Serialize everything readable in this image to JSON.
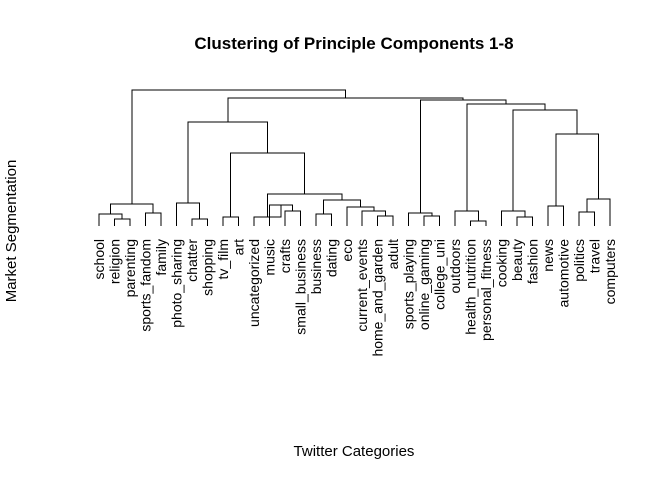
{
  "chart": {
    "title": "Clustering of Principle Components 1-8",
    "ylabel": "Market Segmentation",
    "xlabel": "Twitter Categories"
  },
  "chart_data": {
    "type": "dendrogram",
    "title": "Clustering of Principle Components 1-8",
    "xlabel": "Twitter Categories",
    "ylabel": "Market Segmentation",
    "leaves": [
      "school",
      "religion",
      "parenting",
      "sports_fandom",
      "family",
      "photo_sharing",
      "chatter",
      "shopping",
      "tv_film",
      "art",
      "uncategorized",
      "music",
      "crafts",
      "small_business",
      "business",
      "dating",
      "eco",
      "current_events",
      "home_and_garden",
      "adult",
      "sports_playing",
      "online_gaming",
      "college_uni",
      "outdoors",
      "health_nutrition",
      "personal_fitness",
      "cooking",
      "beauty",
      "fashion",
      "news",
      "automotive",
      "politics",
      "travel",
      "computers"
    ]
  }
}
